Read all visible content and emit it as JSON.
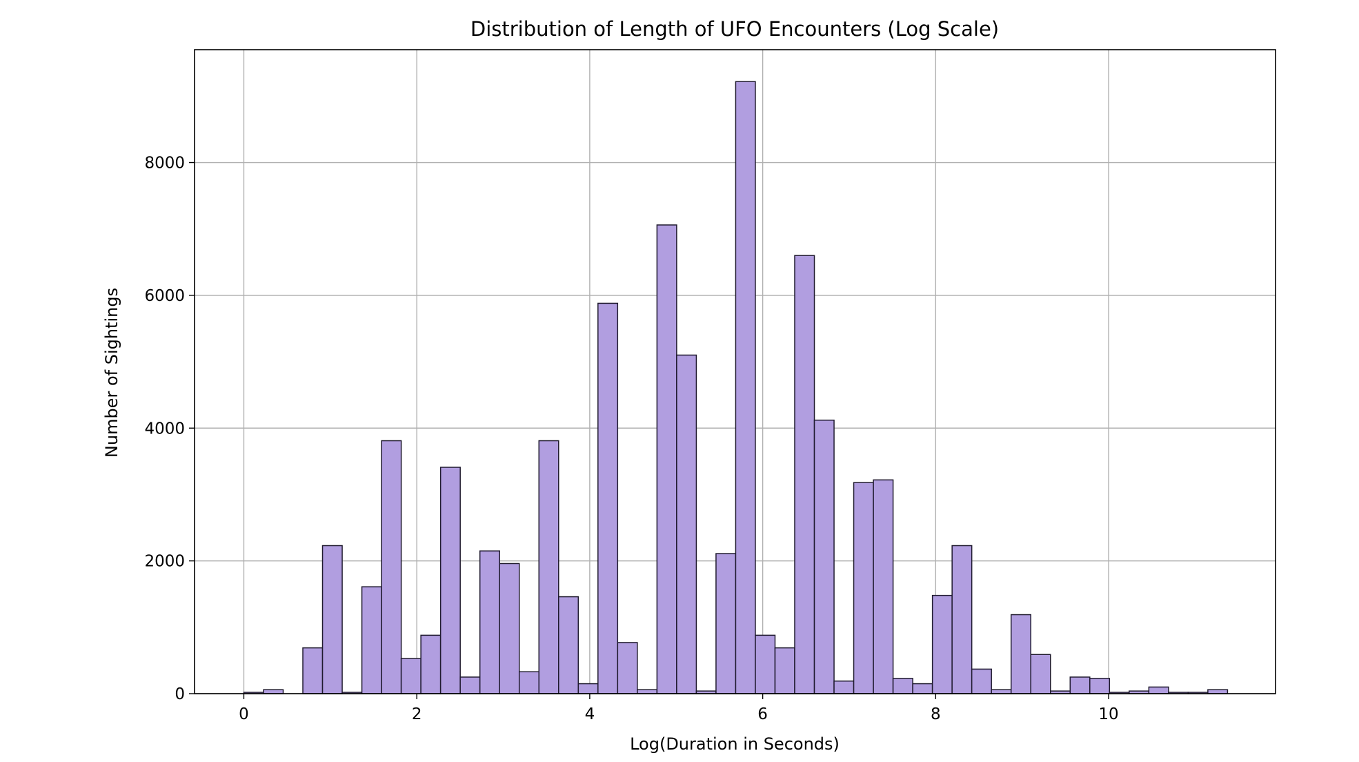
{
  "chart_data": {
    "type": "bar",
    "title": "Distribution of Length of UFO Encounters (Log Scale)",
    "xlabel": "Log(Duration in Seconds)",
    "ylabel": "Number of Sightings",
    "xlim": [
      -0.57,
      11.93
    ],
    "ylim": [
      0,
      9700
    ],
    "x_ticks": [
      0,
      2,
      4,
      6,
      8,
      10
    ],
    "y_ticks": [
      0,
      2000,
      4000,
      6000,
      8000
    ],
    "grid": true,
    "bin_start": 0.0,
    "bin_width": 0.2275,
    "values": [
      20,
      60,
      0,
      690,
      2230,
      20,
      1610,
      3810,
      530,
      880,
      3410,
      250,
      2150,
      1960,
      330,
      3810,
      1460,
      150,
      5880,
      770,
      60,
      7060,
      5100,
      40,
      2110,
      9220,
      880,
      690,
      6600,
      4120,
      190,
      3180,
      3220,
      230,
      150,
      1480,
      2230,
      370,
      60,
      1190,
      590,
      40,
      250,
      230,
      20,
      40,
      100,
      20,
      20,
      60
    ],
    "colors": {
      "bar_fill": "#b19ee0",
      "bar_edge": "#1f1a2e",
      "grid": "#b0b0b0",
      "axis": "#000000"
    }
  }
}
